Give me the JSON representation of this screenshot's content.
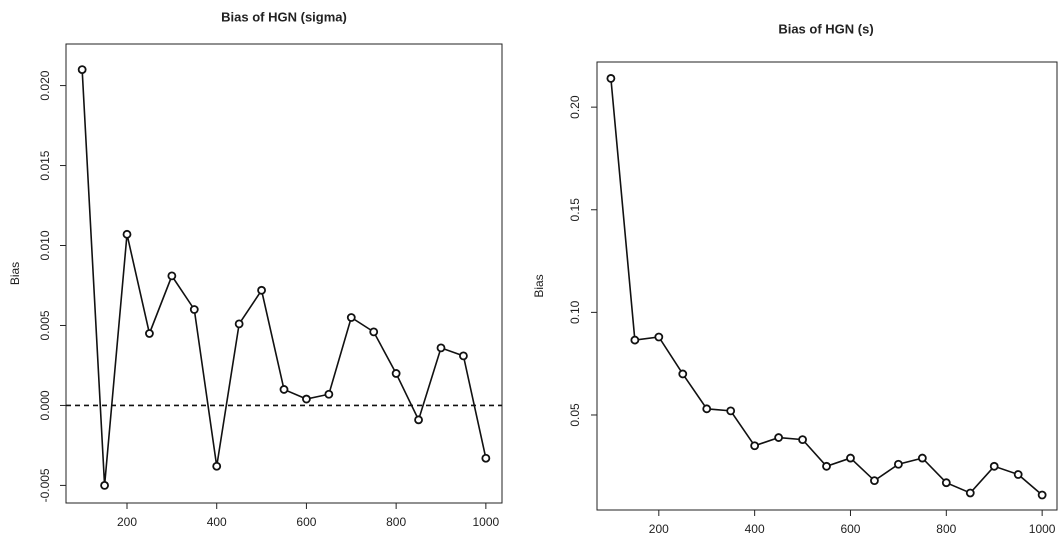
{
  "chart_data": [
    {
      "type": "line",
      "title": "Bias of HGN (sigma)",
      "ylabel": "Bias",
      "x": [
        100,
        150,
        200,
        250,
        300,
        350,
        400,
        450,
        500,
        550,
        600,
        650,
        700,
        750,
        800,
        850,
        900,
        950,
        1000
      ],
      "series": [
        {
          "color": "#111111",
          "values": [
            0.021,
            -0.005,
            0.0107,
            0.0045,
            0.0081,
            0.006,
            -0.0038,
            0.0051,
            0.0072,
            0.001,
            0.0004,
            0.0007,
            0.0055,
            0.0046,
            0.002,
            -0.0009,
            0.0036,
            0.0031,
            -0.0033
          ]
        }
      ],
      "xlim": [
        64,
        1036
      ],
      "ylim": [
        -0.0061,
        0.0226
      ],
      "xticks": [
        200,
        400,
        600,
        800,
        1000
      ],
      "yticks": [
        -0.005,
        {
          "value": 0,
          "label": "0.000"
        },
        0.005,
        {
          "value": 0.01,
          "label": "0.010"
        },
        0.015,
        {
          "value": 0.02,
          "label": "0.020"
        }
      ],
      "hline": 0
    },
    {
      "type": "line",
      "title": "Bias of HGN (s)",
      "ylabel": "Bias",
      "x": [
        100,
        150,
        200,
        250,
        300,
        350,
        400,
        450,
        500,
        550,
        600,
        650,
        700,
        750,
        800,
        850,
        900,
        950,
        1000
      ],
      "series": [
        {
          "color": "#111111",
          "values": [
            0.214,
            0.0865,
            0.088,
            0.07,
            0.053,
            0.052,
            0.035,
            0.039,
            0.038,
            0.025,
            0.029,
            0.018,
            0.026,
            0.029,
            0.017,
            0.012,
            0.025,
            0.021,
            0.011
          ]
        }
      ],
      "xlim": [
        71,
        1031
      ],
      "ylim": [
        0.0037,
        0.222
      ],
      "xticks": [
        200,
        400,
        600,
        800,
        1000
      ],
      "yticks": [
        0.05,
        {
          "value": 0.1,
          "label": "0.10"
        },
        0.15,
        {
          "value": 0.2,
          "label": "0.20"
        }
      ]
    }
  ]
}
